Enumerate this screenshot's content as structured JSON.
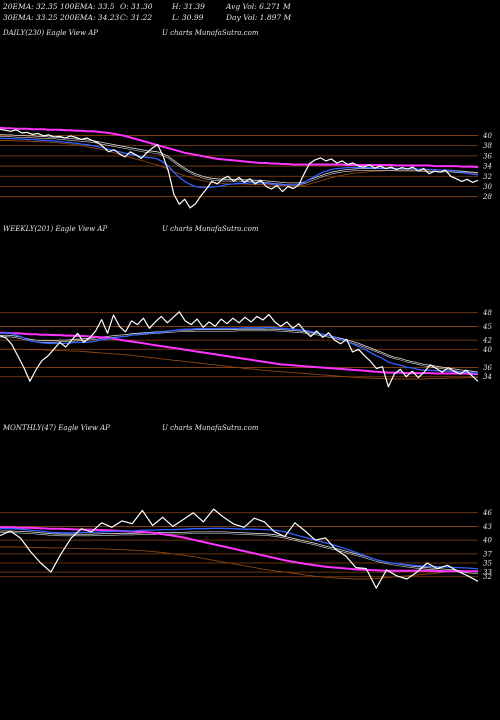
{
  "header": {
    "row1": [
      "20EMA: 32.35",
      "100EMA: 33.5",
      "O: 31.30",
      "H: 31.39",
      "Avg Vol: 6.271 M"
    ],
    "row2": [
      "30EMA: 33.25",
      "200EMA: 34.23",
      "C: 31.22",
      "L: 30.99",
      "Day Vol: 1.897 M"
    ]
  },
  "colors": {
    "price": "#ffffff",
    "grid": "#8b4513",
    "ema_blue": "#3060ff",
    "ema_magenta": "#ff33ff",
    "ema_white": "#d8d8d8",
    "ema_brown": "#8b4513"
  },
  "chart_data": [
    {
      "type": "line",
      "title": "DAILY(230) Eagle  View  AP",
      "watermark": "U charts MunafaSutra.com",
      "yticks": [
        40,
        38,
        36,
        34,
        32,
        30,
        28
      ],
      "ylim": [
        25,
        44
      ],
      "price": [
        41.2,
        41.0,
        40.8,
        41.1,
        40.5,
        40.6,
        40.2,
        40.4,
        39.9,
        40.1,
        39.7,
        39.8,
        39.5,
        39.9,
        39.6,
        39.2,
        39.5,
        39.0,
        38.6,
        37.8,
        36.8,
        37.2,
        36.4,
        35.8,
        36.8,
        36.2,
        35.5,
        36.6,
        37.5,
        38.2,
        36.0,
        33.0,
        28.5,
        26.5,
        27.5,
        25.8,
        26.6,
        28.2,
        29.5,
        31.0,
        30.5,
        31.5,
        32.0,
        31.0,
        31.8,
        30.8,
        31.5,
        30.5,
        31.2,
        30.0,
        29.5,
        30.2,
        29.0,
        30.0,
        29.6,
        30.3,
        32.5,
        34.5,
        35.2,
        35.6,
        35.0,
        35.4,
        34.6,
        35.0,
        34.3,
        34.6,
        34.0,
        33.8,
        34.2,
        33.6,
        34.0,
        33.5,
        33.8,
        33.3,
        33.7,
        33.4,
        33.8,
        33.0,
        33.5,
        32.5,
        33.0,
        32.8,
        33.2,
        32.0,
        31.5,
        31.0,
        31.4,
        30.8,
        31.2
      ],
      "ema_blue": [
        39.5,
        39.4,
        39.4,
        39.3,
        39.3,
        39.2,
        39.2,
        39.1,
        39.0,
        39.0,
        38.9,
        38.8,
        38.7,
        38.6,
        38.5,
        38.3,
        38.2,
        38.0,
        37.8,
        37.6,
        37.3,
        37.0,
        36.8,
        36.5,
        36.3,
        36.1,
        35.9,
        35.7,
        35.6,
        35.4,
        34.8,
        34.0,
        32.8,
        31.8,
        31.0,
        30.4,
        30.0,
        29.8,
        29.8,
        29.9,
        30.0,
        30.2,
        30.4,
        30.5,
        30.6,
        30.6,
        30.7,
        30.7,
        30.7,
        30.6,
        30.5,
        30.4,
        30.3,
        30.3,
        30.3,
        30.4,
        30.8,
        31.4,
        32.0,
        32.6,
        33.0,
        33.3,
        33.5,
        33.6,
        33.7,
        33.7,
        33.7,
        33.7,
        33.7,
        33.6,
        33.6,
        33.6,
        33.6,
        33.5,
        33.5,
        33.5,
        33.5,
        33.4,
        33.4,
        33.3,
        33.3,
        33.2,
        33.2,
        33.1,
        33.0,
        32.8,
        32.6,
        32.4,
        32.3
      ],
      "ema_white": [
        40.2,
        40.1,
        40.1,
        40.0,
        40.0,
        39.9,
        39.9,
        39.8,
        39.8,
        39.7,
        39.7,
        39.6,
        39.5,
        39.4,
        39.3,
        39.2,
        39.1,
        39.0,
        38.8,
        38.6,
        38.4,
        38.2,
        38.0,
        37.8,
        37.6,
        37.4,
        37.2,
        37.0,
        36.9,
        36.8,
        36.4,
        35.9,
        35.1,
        34.3,
        33.6,
        33.0,
        32.5,
        32.1,
        31.8,
        31.6,
        31.5,
        31.4,
        31.4,
        31.4,
        31.4,
        31.3,
        31.3,
        31.2,
        31.2,
        31.1,
        31.0,
        30.9,
        30.8,
        30.7,
        30.7,
        30.7,
        30.9,
        31.3,
        31.7,
        32.1,
        32.5,
        32.8,
        33.0,
        33.2,
        33.3,
        33.4,
        33.5,
        33.5,
        33.5,
        33.5,
        33.5,
        33.5,
        33.5,
        33.4,
        33.4,
        33.4,
        33.4,
        33.4,
        33.3,
        33.3,
        33.3,
        33.2,
        33.2,
        33.2,
        33.1,
        33.0,
        32.9,
        32.8,
        32.7
      ],
      "ema_magenta": [
        41.5,
        41.4,
        41.4,
        41.3,
        41.3,
        41.3,
        41.2,
        41.2,
        41.2,
        41.1,
        41.1,
        41.1,
        41.0,
        41.0,
        40.9,
        40.9,
        40.8,
        40.8,
        40.7,
        40.6,
        40.5,
        40.3,
        40.1,
        39.9,
        39.6,
        39.3,
        39.0,
        38.7,
        38.4,
        38.1,
        37.8,
        37.5,
        37.2,
        36.9,
        36.6,
        36.4,
        36.2,
        36.0,
        35.8,
        35.6,
        35.4,
        35.3,
        35.2,
        35.1,
        35.0,
        34.9,
        34.8,
        34.7,
        34.6,
        34.6,
        34.5,
        34.5,
        34.4,
        34.4,
        34.3,
        34.3,
        34.3,
        34.3,
        34.3,
        34.3,
        34.3,
        34.3,
        34.3,
        34.3,
        34.2,
        34.2,
        34.2,
        34.2,
        34.2,
        34.2,
        34.2,
        34.2,
        34.2,
        34.1,
        34.1,
        34.1,
        34.1,
        34.1,
        34.1,
        34.1,
        34.0,
        34.0,
        34.0,
        34.0,
        34.0,
        33.9,
        33.9,
        33.9,
        33.8
      ],
      "ema_brown": [
        39.0,
        39.0,
        39.0,
        38.9,
        38.9,
        38.9,
        38.8,
        38.8,
        38.7,
        38.7,
        38.6,
        38.5,
        38.4,
        38.3,
        38.2,
        38.0,
        37.8,
        37.6,
        37.4,
        37.2,
        36.9,
        36.6,
        36.3,
        36.0,
        35.7,
        35.4,
        35.1,
        34.8,
        34.5,
        34.2,
        33.8,
        33.4,
        32.9,
        32.5,
        32.1,
        31.8,
        31.5,
        31.2,
        31.0,
        30.8,
        30.7,
        30.6,
        30.5,
        30.5,
        30.5,
        30.5,
        30.4,
        30.4,
        30.4,
        30.3,
        30.3,
        30.2,
        30.2,
        30.1,
        30.1,
        30.1,
        30.2,
        30.5,
        30.8,
        31.1,
        31.4,
        31.7,
        32.0,
        32.2,
        32.4,
        32.6,
        32.7,
        32.8,
        32.9,
        33.0,
        33.0,
        33.1,
        33.1,
        33.1,
        33.1,
        33.1,
        33.1,
        33.1,
        33.1,
        33.1,
        33.0,
        33.0,
        33.0,
        33.0,
        32.9,
        32.9,
        32.8,
        32.7,
        32.6
      ]
    },
    {
      "type": "line",
      "title": "WEEKLY(201) Eagle  View  AP",
      "watermark": "U charts MunafaSutra.com",
      "yticks": [
        48,
        45,
        42,
        40,
        36,
        34
      ],
      "ylim": [
        30,
        51
      ],
      "price": [
        43.0,
        42.5,
        41.0,
        38.5,
        36.0,
        33.0,
        35.5,
        37.5,
        38.5,
        40.0,
        41.5,
        40.5,
        42.0,
        43.5,
        41.5,
        42.5,
        44.0,
        46.5,
        43.5,
        47.5,
        45.0,
        43.8,
        46.2,
        45.4,
        46.8,
        44.6,
        46.0,
        47.2,
        45.8,
        47.0,
        48.2,
        46.2,
        45.4,
        46.6,
        44.8,
        46.0,
        45.0,
        46.6,
        45.6,
        46.8,
        45.8,
        47.0,
        46.0,
        47.2,
        46.4,
        47.6,
        46.0,
        45.0,
        46.0,
        44.6,
        45.6,
        44.0,
        42.8,
        44.0,
        42.6,
        43.6,
        42.0,
        41.2,
        42.2,
        39.4,
        40.0,
        38.6,
        37.4,
        35.8,
        36.2,
        31.8,
        34.6,
        35.6,
        34.0,
        35.2,
        33.8,
        35.0,
        36.6,
        35.8,
        35.0,
        36.0,
        35.2,
        34.6,
        35.4,
        34.2,
        33.0
      ],
      "ema_blue": [
        43.5,
        43.6,
        43.4,
        43.0,
        42.5,
        41.9,
        41.6,
        41.4,
        41.3,
        41.3,
        41.3,
        41.3,
        41.4,
        41.5,
        41.5,
        41.6,
        41.8,
        42.1,
        42.2,
        42.5,
        42.7,
        42.8,
        43.1,
        43.2,
        43.4,
        43.5,
        43.6,
        43.8,
        43.9,
        44.1,
        44.3,
        44.4,
        44.4,
        44.5,
        44.5,
        44.5,
        44.5,
        44.6,
        44.6,
        44.6,
        44.6,
        44.7,
        44.7,
        44.7,
        44.7,
        44.8,
        44.7,
        44.6,
        44.5,
        44.4,
        44.3,
        44.1,
        43.9,
        43.6,
        43.3,
        43.0,
        42.6,
        42.2,
        41.8,
        41.2,
        40.6,
        40.0,
        39.3,
        38.6,
        38.0,
        37.2,
        36.8,
        36.5,
        36.1,
        35.9,
        35.6,
        35.4,
        35.4,
        35.3,
        35.2,
        35.2,
        35.1,
        35.0,
        35.0,
        34.9,
        34.7
      ],
      "ema_white": [
        43.0,
        43.1,
        43.0,
        42.8,
        42.5,
        42.2,
        42.0,
        41.9,
        41.9,
        41.9,
        42.0,
        42.0,
        42.1,
        42.2,
        42.3,
        42.4,
        42.5,
        42.7,
        42.8,
        43.0,
        43.1,
        43.2,
        43.4,
        43.5,
        43.6,
        43.7,
        43.8,
        43.9,
        44.0,
        44.1,
        44.2,
        44.2,
        44.2,
        44.3,
        44.3,
        44.3,
        44.3,
        44.3,
        44.3,
        44.3,
        44.4,
        44.4,
        44.4,
        44.4,
        44.4,
        44.4,
        44.4,
        44.3,
        44.2,
        44.1,
        44.0,
        43.9,
        43.7,
        43.5,
        43.3,
        43.0,
        42.7,
        42.4,
        42.1,
        41.7,
        41.3,
        40.8,
        40.3,
        39.8,
        39.3,
        38.7,
        38.3,
        38.0,
        37.6,
        37.3,
        37.0,
        36.7,
        36.5,
        36.3,
        36.1,
        35.9,
        35.7,
        35.5,
        35.4,
        35.2,
        35.0
      ],
      "ema_magenta": [
        43.6,
        43.6,
        43.5,
        43.5,
        43.4,
        43.3,
        43.3,
        43.2,
        43.2,
        43.1,
        43.1,
        43.0,
        43.0,
        42.9,
        42.9,
        42.8,
        42.7,
        42.6,
        42.5,
        42.3,
        42.1,
        41.9,
        41.7,
        41.5,
        41.3,
        41.1,
        40.9,
        40.7,
        40.5,
        40.3,
        40.1,
        39.9,
        39.7,
        39.5,
        39.3,
        39.1,
        38.9,
        38.7,
        38.5,
        38.3,
        38.1,
        37.9,
        37.7,
        37.5,
        37.3,
        37.1,
        36.9,
        36.7,
        36.6,
        36.5,
        36.4,
        36.3,
        36.2,
        36.1,
        36.0,
        35.9,
        35.8,
        35.7,
        35.6,
        35.5,
        35.4,
        35.3,
        35.2,
        35.1,
        35.0,
        34.9,
        34.9,
        34.9,
        34.8,
        34.8,
        34.8,
        34.8,
        34.8,
        34.7,
        34.7,
        34.7,
        34.7,
        34.7,
        34.7,
        34.6,
        34.6
      ],
      "ema_brown": [
        40.0,
        40.0,
        40.0,
        40.0,
        40.0,
        39.9,
        39.9,
        39.9,
        39.8,
        39.8,
        39.7,
        39.7,
        39.6,
        39.6,
        39.5,
        39.4,
        39.3,
        39.2,
        39.1,
        39.0,
        38.9,
        38.8,
        38.7,
        38.5,
        38.4,
        38.2,
        38.1,
        37.9,
        37.8,
        37.6,
        37.5,
        37.3,
        37.2,
        37.0,
        36.9,
        36.7,
        36.6,
        36.4,
        36.3,
        36.1,
        36.0,
        35.8,
        35.7,
        35.6,
        35.4,
        35.3,
        35.2,
        35.1,
        35.0,
        34.9,
        34.8,
        34.7,
        34.6,
        34.5,
        34.4,
        34.3,
        34.2,
        34.1,
        34.0,
        33.9,
        33.8,
        33.7,
        33.7,
        33.6,
        33.6,
        33.5,
        33.5,
        33.5,
        33.5,
        33.5,
        33.5,
        33.5,
        33.6,
        33.6,
        33.6,
        33.7,
        33.7,
        33.7,
        33.8,
        33.8,
        33.8
      ]
    },
    {
      "type": "line",
      "title": "MONTHLY(47) Eagle  View  AP",
      "watermark": "U charts MunafaSutra.com",
      "yticks": [
        46,
        43,
        40,
        37,
        35,
        33,
        32
      ],
      "ylim": [
        28,
        49
      ],
      "price": [
        41.0,
        42.0,
        40.5,
        37.5,
        35.0,
        33.0,
        37.0,
        40.5,
        42.5,
        41.8,
        43.8,
        42.8,
        44.2,
        43.6,
        46.5,
        43.2,
        45.0,
        43.0,
        44.5,
        46.0,
        44.0,
        46.8,
        45.0,
        43.5,
        42.8,
        44.8,
        44.0,
        41.8,
        40.8,
        43.8,
        42.0,
        40.0,
        40.5,
        38.0,
        36.5,
        34.0,
        33.8,
        29.5,
        33.5,
        32.2,
        31.5,
        33.0,
        35.0,
        33.8,
        34.5,
        33.2,
        32.2,
        31.0
      ],
      "ema_blue": [
        42.5,
        42.5,
        42.4,
        42.2,
        42.0,
        41.7,
        41.6,
        41.6,
        41.7,
        41.7,
        41.8,
        41.9,
        42.0,
        42.0,
        42.2,
        42.2,
        42.3,
        42.3,
        42.4,
        42.5,
        42.5,
        42.6,
        42.6,
        42.5,
        42.4,
        42.4,
        42.3,
        42.2,
        41.8,
        41.2,
        40.6,
        40.0,
        39.4,
        38.8,
        38.1,
        37.3,
        36.5,
        35.7,
        35.2,
        34.9,
        34.6,
        34.4,
        34.3,
        34.2,
        34.1,
        34.0,
        33.9,
        33.7
      ],
      "ema_white": [
        42.0,
        42.0,
        41.9,
        41.8,
        41.6,
        41.4,
        41.3,
        41.3,
        41.3,
        41.3,
        41.4,
        41.4,
        41.5,
        41.5,
        41.6,
        41.6,
        41.7,
        41.7,
        41.7,
        41.8,
        41.8,
        41.8,
        41.8,
        41.7,
        41.6,
        41.5,
        41.4,
        41.2,
        40.8,
        40.3,
        39.8,
        39.3,
        38.7,
        38.2,
        37.6,
        37.0,
        36.4,
        35.7,
        35.2,
        34.8,
        34.5,
        34.2,
        34.0,
        33.8,
        33.6,
        33.4,
        33.2,
        33.0
      ],
      "ema_magenta": [
        42.8,
        42.8,
        42.7,
        42.7,
        42.6,
        42.5,
        42.5,
        42.4,
        42.3,
        42.3,
        42.2,
        42.1,
        42.0,
        41.9,
        41.8,
        41.6,
        41.3,
        41.0,
        40.6,
        40.1,
        39.6,
        39.1,
        38.6,
        38.1,
        37.6,
        37.1,
        36.6,
        36.1,
        35.6,
        35.2,
        34.8,
        34.5,
        34.2,
        34.0,
        33.8,
        33.6,
        33.5,
        33.4,
        33.3,
        33.3,
        33.3,
        33.3,
        33.3,
        33.2,
        33.2,
        33.2,
        33.2,
        33.2
      ],
      "ema_brown": [
        38.5,
        38.5,
        38.5,
        38.4,
        38.4,
        38.3,
        38.3,
        38.2,
        38.2,
        38.1,
        38.1,
        38.0,
        37.9,
        37.8,
        37.7,
        37.5,
        37.3,
        37.0,
        36.7,
        36.4,
        36.0,
        35.6,
        35.2,
        34.8,
        34.4,
        34.0,
        33.6,
        33.3,
        33.0,
        32.7,
        32.4,
        32.1,
        31.9,
        31.7,
        31.6,
        31.5,
        31.5,
        31.6,
        31.8,
        32.0,
        32.2,
        32.4,
        32.6,
        32.8,
        33.0,
        33.0,
        33.0,
        33.0
      ]
    }
  ]
}
